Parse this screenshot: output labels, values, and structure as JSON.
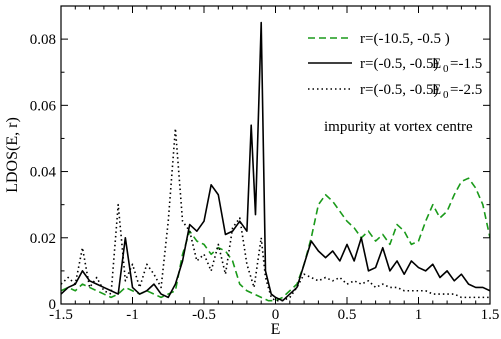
{
  "chart_data": {
    "type": "line",
    "xlabel": "E",
    "ylabel": "LDOS(E, r)",
    "xlim": [
      -1.5,
      1.5
    ],
    "ylim": [
      0,
      0.09
    ],
    "x_ticks": [
      -1.5,
      -1,
      -0.5,
      0,
      0.5,
      1,
      1.5
    ],
    "x_tick_labels": [
      "-1.5",
      "-1",
      "-0.5",
      "0",
      "0.5",
      "1",
      "1.5"
    ],
    "y_ticks": [
      0,
      0.02,
      0.04,
      0.06,
      0.08
    ],
    "y_tick_labels": [
      "0",
      "0.02",
      "0.04",
      "0.06",
      "0.08"
    ],
    "grid": false,
    "legend_position": "top-right",
    "annotation": "impurity at vortex centre",
    "series": [
      {
        "name_parts": [
          "r=(-10.5, -0.5 )"
        ],
        "color": "#1a9a1a",
        "dash": "dashed",
        "x": [
          -1.5,
          -1.45,
          -1.4,
          -1.35,
          -1.3,
          -1.25,
          -1.2,
          -1.15,
          -1.1,
          -1.05,
          -1.0,
          -0.95,
          -0.9,
          -0.85,
          -0.8,
          -0.75,
          -0.7,
          -0.65,
          -0.6,
          -0.55,
          -0.5,
          -0.45,
          -0.4,
          -0.35,
          -0.3,
          -0.25,
          -0.2,
          -0.15,
          -0.1,
          -0.05,
          0.0,
          0.05,
          0.1,
          0.15,
          0.2,
          0.25,
          0.3,
          0.35,
          0.4,
          0.45,
          0.5,
          0.55,
          0.6,
          0.65,
          0.7,
          0.75,
          0.8,
          0.85,
          0.9,
          0.95,
          1.0,
          1.05,
          1.1,
          1.15,
          1.2,
          1.25,
          1.3,
          1.35,
          1.4,
          1.45,
          1.5
        ],
        "y": [
          0.004,
          0.005,
          0.004,
          0.006,
          0.005,
          0.004,
          0.003,
          0.002,
          0.003,
          0.005,
          0.004,
          0.003,
          0.004,
          0.003,
          0.002,
          0.003,
          0.004,
          0.015,
          0.022,
          0.019,
          0.018,
          0.015,
          0.017,
          0.016,
          0.013,
          0.006,
          0.004,
          0.003,
          0.002,
          0.001,
          0.001,
          0.002,
          0.004,
          0.006,
          0.012,
          0.02,
          0.03,
          0.033,
          0.031,
          0.028,
          0.025,
          0.023,
          0.02,
          0.022,
          0.019,
          0.021,
          0.018,
          0.024,
          0.022,
          0.018,
          0.019,
          0.025,
          0.03,
          0.026,
          0.028,
          0.033,
          0.037,
          0.038,
          0.035,
          0.03,
          0.02
        ]
      },
      {
        "name_parts": [
          "r=(-0.5, -0.5)",
          "E",
          "0",
          "=-1.5"
        ],
        "color": "#000000",
        "dash": "solid",
        "x": [
          -1.5,
          -1.45,
          -1.4,
          -1.35,
          -1.3,
          -1.25,
          -1.2,
          -1.15,
          -1.1,
          -1.05,
          -1.0,
          -0.95,
          -0.9,
          -0.85,
          -0.8,
          -0.75,
          -0.7,
          -0.65,
          -0.6,
          -0.55,
          -0.5,
          -0.45,
          -0.4,
          -0.35,
          -0.3,
          -0.25,
          -0.2,
          -0.17,
          -0.14,
          -0.1,
          -0.07,
          -0.03,
          0.0,
          0.05,
          0.1,
          0.15,
          0.2,
          0.25,
          0.3,
          0.35,
          0.4,
          0.45,
          0.5,
          0.55,
          0.6,
          0.65,
          0.7,
          0.75,
          0.8,
          0.85,
          0.9,
          0.95,
          1.0,
          1.05,
          1.1,
          1.15,
          1.2,
          1.25,
          1.3,
          1.35,
          1.4,
          1.45,
          1.5
        ],
        "y": [
          0.003,
          0.005,
          0.006,
          0.01,
          0.007,
          0.006,
          0.005,
          0.004,
          0.003,
          0.02,
          0.005,
          0.003,
          0.004,
          0.006,
          0.003,
          0.002,
          0.006,
          0.013,
          0.024,
          0.022,
          0.025,
          0.036,
          0.033,
          0.021,
          0.022,
          0.025,
          0.022,
          0.054,
          0.027,
          0.085,
          0.01,
          0.003,
          0.002,
          0.001,
          0.003,
          0.005,
          0.012,
          0.019,
          0.016,
          0.014,
          0.016,
          0.013,
          0.018,
          0.013,
          0.02,
          0.01,
          0.011,
          0.017,
          0.01,
          0.013,
          0.009,
          0.013,
          0.011,
          0.01,
          0.012,
          0.008,
          0.01,
          0.007,
          0.009,
          0.006,
          0.005,
          0.005,
          0.004
        ]
      },
      {
        "name_parts": [
          "r=(-0.5, -0.5)",
          "E",
          "0",
          "=-2.5"
        ],
        "color": "#000000",
        "dash": "dotted",
        "x": [
          -1.5,
          -1.45,
          -1.4,
          -1.35,
          -1.3,
          -1.25,
          -1.2,
          -1.15,
          -1.1,
          -1.05,
          -1.0,
          -0.95,
          -0.9,
          -0.85,
          -0.8,
          -0.75,
          -0.7,
          -0.65,
          -0.6,
          -0.55,
          -0.5,
          -0.45,
          -0.4,
          -0.35,
          -0.3,
          -0.25,
          -0.2,
          -0.15,
          -0.1,
          -0.07,
          -0.03,
          0.0,
          0.05,
          0.1,
          0.15,
          0.2,
          0.25,
          0.3,
          0.35,
          0.4,
          0.45,
          0.5,
          0.55,
          0.6,
          0.65,
          0.7,
          0.75,
          0.8,
          0.85,
          0.9,
          0.95,
          1.0,
          1.05,
          1.1,
          1.15,
          1.2,
          1.25,
          1.3,
          1.35,
          1.4,
          1.45,
          1.5
        ],
        "y": [
          0.006,
          0.008,
          0.006,
          0.017,
          0.005,
          0.008,
          0.004,
          0.003,
          0.03,
          0.007,
          0.012,
          0.005,
          0.012,
          0.009,
          0.005,
          0.025,
          0.053,
          0.025,
          0.022,
          0.013,
          0.015,
          0.01,
          0.018,
          0.009,
          0.023,
          0.026,
          0.012,
          0.005,
          0.02,
          0.008,
          0.002,
          0.001,
          0.001,
          0.002,
          0.005,
          0.009,
          0.008,
          0.007,
          0.008,
          0.007,
          0.008,
          0.006,
          0.007,
          0.006,
          0.007,
          0.005,
          0.006,
          0.005,
          0.005,
          0.004,
          0.004,
          0.004,
          0.004,
          0.003,
          0.003,
          0.003,
          0.003,
          0.002,
          0.002,
          0.002,
          0.002,
          0.002
        ]
      }
    ]
  }
}
